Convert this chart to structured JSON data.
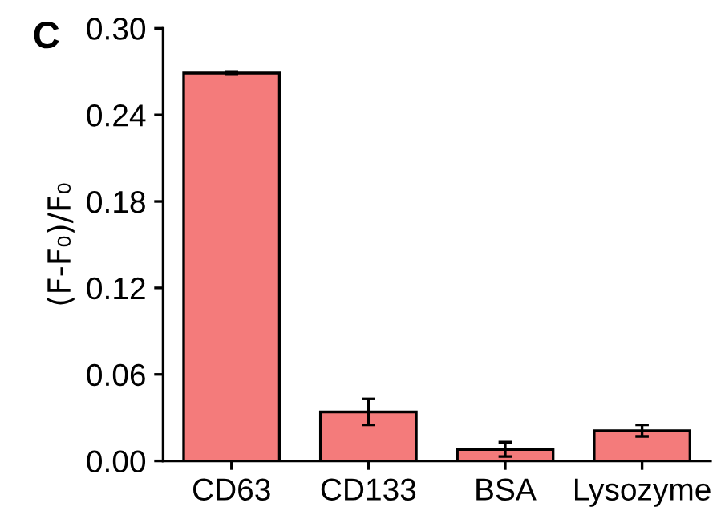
{
  "chart_data": {
    "type": "bar",
    "ylabel": "(F-F₀)/F₀",
    "annotations": [
      "C"
    ],
    "categories": [
      "CD63",
      "CD133",
      "BSA",
      "Lysozyme"
    ],
    "values": [
      0.269,
      0.034,
      0.008,
      0.021
    ],
    "errors": [
      0.001,
      0.009,
      0.005,
      0.004
    ],
    "color": "#f47b7b",
    "ylim": [
      0,
      0.3
    ],
    "yticks": [
      {
        "value": 0,
        "label": "0.00"
      },
      {
        "value": 0.06,
        "label": "0.06"
      },
      {
        "value": 0.12,
        "label": "0.12"
      },
      {
        "value": 0.18,
        "label": "0.18"
      },
      {
        "value": 0.24,
        "label": "0.24"
      },
      {
        "value": 0.3,
        "label": "0.30"
      }
    ],
    "grid": false
  }
}
